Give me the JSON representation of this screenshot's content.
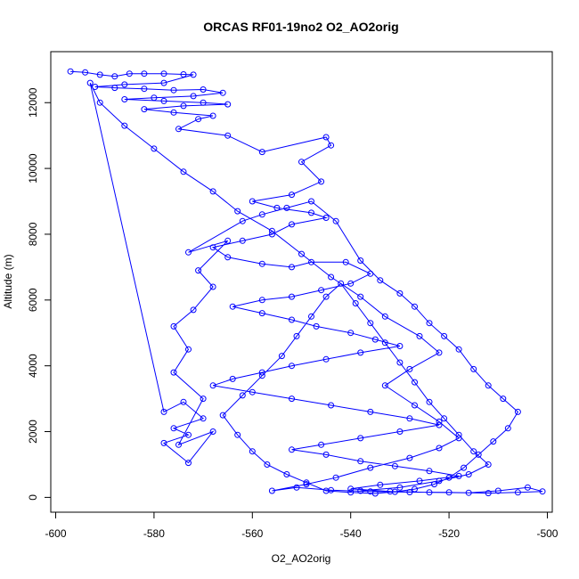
{
  "chart_data": {
    "type": "scatter",
    "title": "ORCAS RF01-19no2 O2_AO2orig",
    "xlabel": "O2_AO2orig",
    "ylabel": "Altitude (m)",
    "xlim": [
      -601,
      -499
    ],
    "ylim": [
      -450,
      13550
    ],
    "x_ticks": [
      -600,
      -580,
      -560,
      -540,
      -520,
      -500
    ],
    "y_ticks": [
      0,
      2000,
      4000,
      6000,
      8000,
      10000,
      12000
    ],
    "x_tick_labels": [
      "-600",
      "-580",
      "-560",
      "-540",
      "-520",
      "-500"
    ],
    "y_tick_labels": [
      "0",
      "2000",
      "4000",
      "6000",
      "8000",
      "10000",
      "12000"
    ],
    "grid": false,
    "legend": "none",
    "series": [
      {
        "color": "#0000ff",
        "style": "line+circle",
        "points": [
          [
            -597,
            12950
          ],
          [
            -594,
            12920
          ],
          [
            -591,
            12850
          ],
          [
            -588,
            12800
          ],
          [
            -585,
            12880
          ],
          [
            -582,
            12880
          ],
          [
            -578,
            12880
          ],
          [
            -574,
            12860
          ],
          [
            -572,
            12850
          ],
          [
            -578,
            12600
          ],
          [
            -586,
            12550
          ],
          [
            -592,
            12480
          ],
          [
            -588,
            12450
          ],
          [
            -582,
            12420
          ],
          [
            -576,
            12380
          ],
          [
            -570,
            12400
          ],
          [
            -566,
            12300
          ],
          [
            -572,
            12200
          ],
          [
            -580,
            12150
          ],
          [
            -586,
            12100
          ],
          [
            -578,
            12050
          ],
          [
            -570,
            12000
          ],
          [
            -565,
            11950
          ],
          [
            -574,
            11900
          ],
          [
            -582,
            11800
          ],
          [
            -576,
            11700
          ],
          [
            -568,
            11600
          ],
          [
            -571,
            11500
          ],
          [
            -575,
            11200
          ],
          [
            -565,
            11000
          ],
          [
            -558,
            10500
          ],
          [
            -545,
            10950
          ],
          [
            -544,
            10700
          ],
          [
            -550,
            10200
          ],
          [
            -546,
            9600
          ],
          [
            -552,
            9200
          ],
          [
            -560,
            9000
          ],
          [
            -555,
            8800
          ],
          [
            -548,
            8650
          ],
          [
            -545,
            8500
          ],
          [
            -552,
            8300
          ],
          [
            -556,
            8000
          ],
          [
            -562,
            7800
          ],
          [
            -568,
            7600
          ],
          [
            -565,
            7300
          ],
          [
            -558,
            7100
          ],
          [
            -552,
            7000
          ],
          [
            -548,
            7150
          ],
          [
            -541,
            7150
          ],
          [
            -536,
            6800
          ],
          [
            -540,
            6500
          ],
          [
            -546,
            6300
          ],
          [
            -552,
            6100
          ],
          [
            -558,
            6000
          ],
          [
            -564,
            5800
          ],
          [
            -558,
            5600
          ],
          [
            -552,
            5400
          ],
          [
            -547,
            5200
          ],
          [
            -540,
            5000
          ],
          [
            -535,
            4800
          ],
          [
            -530,
            4600
          ],
          [
            -538,
            4400
          ],
          [
            -545,
            4200
          ],
          [
            -552,
            4000
          ],
          [
            -558,
            3800
          ],
          [
            -564,
            3600
          ],
          [
            -568,
            3400
          ],
          [
            -560,
            3200
          ],
          [
            -552,
            3000
          ],
          [
            -544,
            2800
          ],
          [
            -536,
            2600
          ],
          [
            -528,
            2400
          ],
          [
            -522,
            2200
          ],
          [
            -530,
            2000
          ],
          [
            -538,
            1800
          ],
          [
            -546,
            1600
          ],
          [
            -552,
            1450
          ],
          [
            -545,
            1300
          ],
          [
            -538,
            1100
          ],
          [
            -531,
            950
          ],
          [
            -524,
            800
          ],
          [
            -518,
            650
          ],
          [
            -526,
            500
          ],
          [
            -534,
            380
          ],
          [
            -540,
            260
          ],
          [
            -532,
            180
          ],
          [
            -524,
            150
          ],
          [
            -516,
            140
          ],
          [
            -510,
            200
          ],
          [
            -504,
            300
          ],
          [
            -501,
            180
          ],
          [
            -506,
            150
          ],
          [
            -512,
            130
          ],
          [
            -520,
            150
          ],
          [
            -528,
            160
          ],
          [
            -536,
            180
          ],
          [
            -544,
            220
          ],
          [
            -551,
            300
          ],
          [
            -556,
            200
          ],
          [
            -549,
            400
          ],
          [
            -543,
            600
          ],
          [
            -536,
            900
          ],
          [
            -528,
            1200
          ],
          [
            -522,
            1500
          ],
          [
            -518,
            1800
          ],
          [
            -522,
            2300
          ],
          [
            -527,
            2800
          ],
          [
            -533,
            3400
          ],
          [
            -528,
            3900
          ],
          [
            -522,
            4400
          ],
          [
            -526,
            4900
          ],
          [
            -533,
            5500
          ],
          [
            -538,
            6100
          ],
          [
            -544,
            6700
          ],
          [
            -550,
            7400
          ],
          [
            -556,
            8100
          ],
          [
            -563,
            8700
          ],
          [
            -568,
            9300
          ],
          [
            -574,
            9900
          ],
          [
            -580,
            10600
          ],
          [
            -586,
            11300
          ],
          [
            -591,
            12000
          ],
          [
            -593,
            12600
          ],
          [
            -578,
            2600
          ],
          [
            -574,
            2900
          ],
          [
            -570,
            2400
          ],
          [
            -576,
            2100
          ],
          [
            -573,
            1900
          ],
          [
            -578,
            1650
          ],
          [
            -573,
            1050
          ],
          [
            -568,
            2000
          ],
          [
            -575,
            1600
          ],
          [
            -570,
            3000
          ],
          [
            -576,
            3800
          ],
          [
            -573,
            4500
          ],
          [
            -576,
            5200
          ],
          [
            -572,
            5700
          ],
          [
            -568,
            6400
          ],
          [
            -571,
            6900
          ],
          [
            -565,
            7800
          ],
          [
            -573,
            7450
          ],
          [
            -562,
            8400
          ],
          [
            -558,
            8600
          ],
          [
            -553,
            8800
          ],
          [
            -548,
            9000
          ],
          [
            -543,
            8400
          ],
          [
            -538,
            7200
          ],
          [
            -534,
            6600
          ],
          [
            -530,
            6200
          ],
          [
            -527,
            5800
          ],
          [
            -524,
            5300
          ],
          [
            -521,
            4900
          ],
          [
            -518,
            4500
          ],
          [
            -515,
            3900
          ],
          [
            -512,
            3400
          ],
          [
            -509,
            3000
          ],
          [
            -506,
            2600
          ],
          [
            -508,
            2100
          ],
          [
            -511,
            1700
          ],
          [
            -514,
            1300
          ],
          [
            -517,
            900
          ],
          [
            -520,
            600
          ],
          [
            -523,
            400
          ],
          [
            -527,
            250
          ],
          [
            -531,
            170
          ],
          [
            -535,
            120
          ],
          [
            -540,
            150
          ],
          [
            -545,
            200
          ],
          [
            -549,
            450
          ],
          [
            -553,
            700
          ],
          [
            -557,
            1000
          ],
          [
            -560,
            1400
          ],
          [
            -563,
            1900
          ],
          [
            -566,
            2500
          ],
          [
            -562,
            3100
          ],
          [
            -558,
            3700
          ],
          [
            -554,
            4300
          ],
          [
            -551,
            4900
          ],
          [
            -548,
            5500
          ],
          [
            -545,
            6100
          ],
          [
            -542,
            6500
          ],
          [
            -539,
            5900
          ],
          [
            -536,
            5300
          ],
          [
            -533,
            4700
          ],
          [
            -530,
            4100
          ],
          [
            -527,
            3500
          ],
          [
            -524,
            2900
          ],
          [
            -521,
            2400
          ],
          [
            -518,
            1900
          ],
          [
            -515,
            1400
          ],
          [
            -512,
            1000
          ],
          [
            -516,
            700
          ],
          [
            -522,
            500
          ],
          [
            -530,
            300
          ],
          [
            -538,
            200
          ]
        ]
      }
    ]
  }
}
